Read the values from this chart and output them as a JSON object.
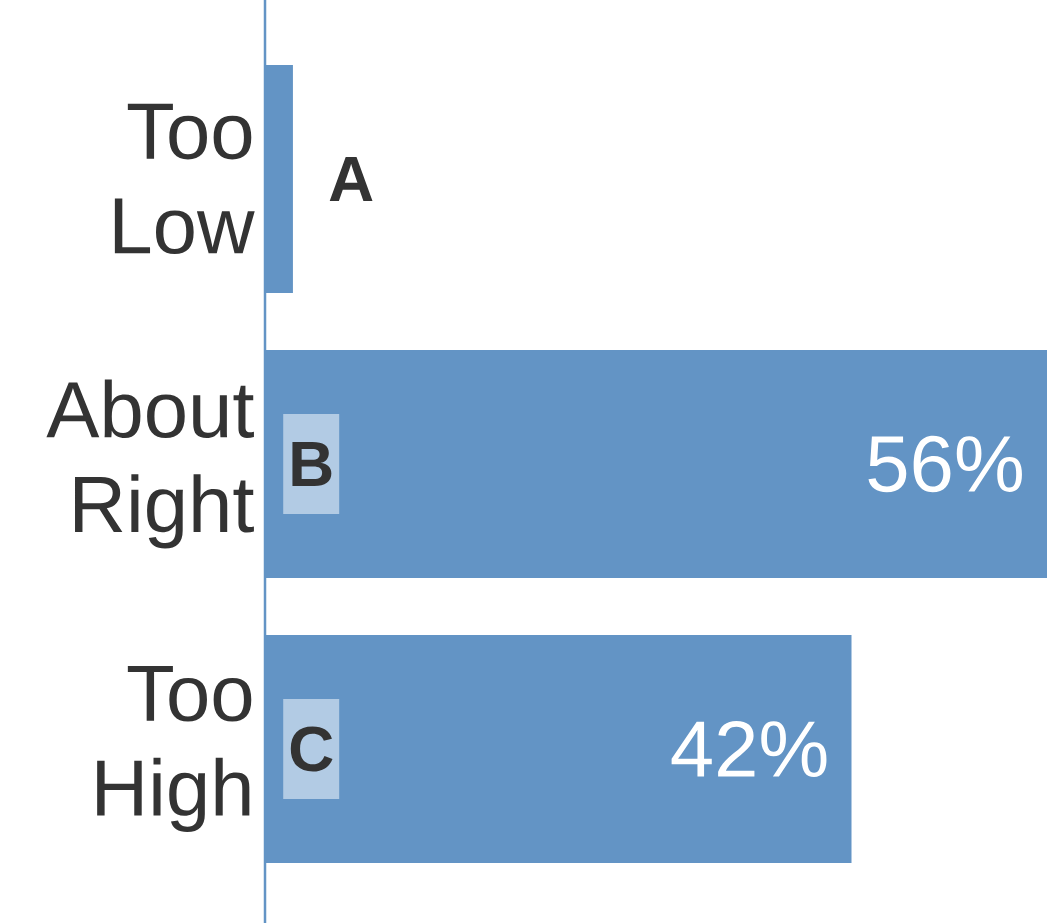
{
  "chart_data": {
    "type": "bar",
    "orientation": "horizontal",
    "categories": [
      "Too Low",
      "About Right",
      "Too High"
    ],
    "values": [
      2,
      56,
      42
    ],
    "value_labels": [
      null,
      "56%",
      "42%"
    ],
    "color": "#6394c5",
    "annotations": [
      "A",
      "B",
      "C"
    ]
  }
}
